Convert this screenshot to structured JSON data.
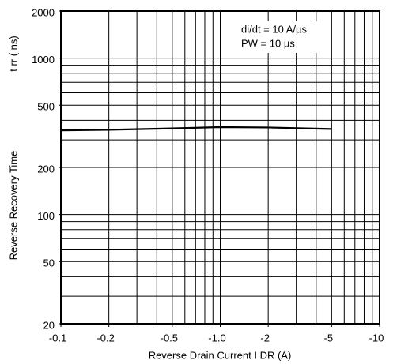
{
  "chart_data": {
    "type": "line",
    "log_x": true,
    "log_y": true,
    "grid": true,
    "xlabel": "Reverse Drain Current   I DR  (A)",
    "ylabel": "Reverse Recovery Time",
    "ylabel_unit": "t rr  ( ns)",
    "annotations": [
      "di/dt = 10 A/µs",
      "PW = 10 µs"
    ],
    "x": [
      -0.1,
      -0.2,
      -0.5,
      -1,
      -2,
      -5
    ],
    "series": [
      {
        "color": "#000000",
        "values": [
          345,
          348,
          355,
          362,
          360,
          352
        ]
      }
    ],
    "xlim": [
      -0.1,
      -10
    ],
    "xticks": [
      -0.1,
      -0.2,
      -0.5,
      {
        "value": -1,
        "label": "-1.0"
      },
      -2,
      -5,
      -10
    ],
    "ylim": [
      20,
      2000
    ],
    "yticks": [
      20,
      50,
      100,
      200,
      500,
      1000,
      2000
    ],
    "xgrid": [
      -0.2,
      -0.3,
      -0.4,
      -0.5,
      -0.6,
      -0.7,
      -0.8,
      -0.9,
      -1,
      -2,
      -3,
      -4,
      -5,
      -6,
      -7,
      -8,
      -9
    ],
    "ygrid": [
      30,
      40,
      50,
      60,
      70,
      80,
      90,
      100,
      200,
      300,
      400,
      500,
      600,
      700,
      800,
      900,
      1000
    ]
  }
}
